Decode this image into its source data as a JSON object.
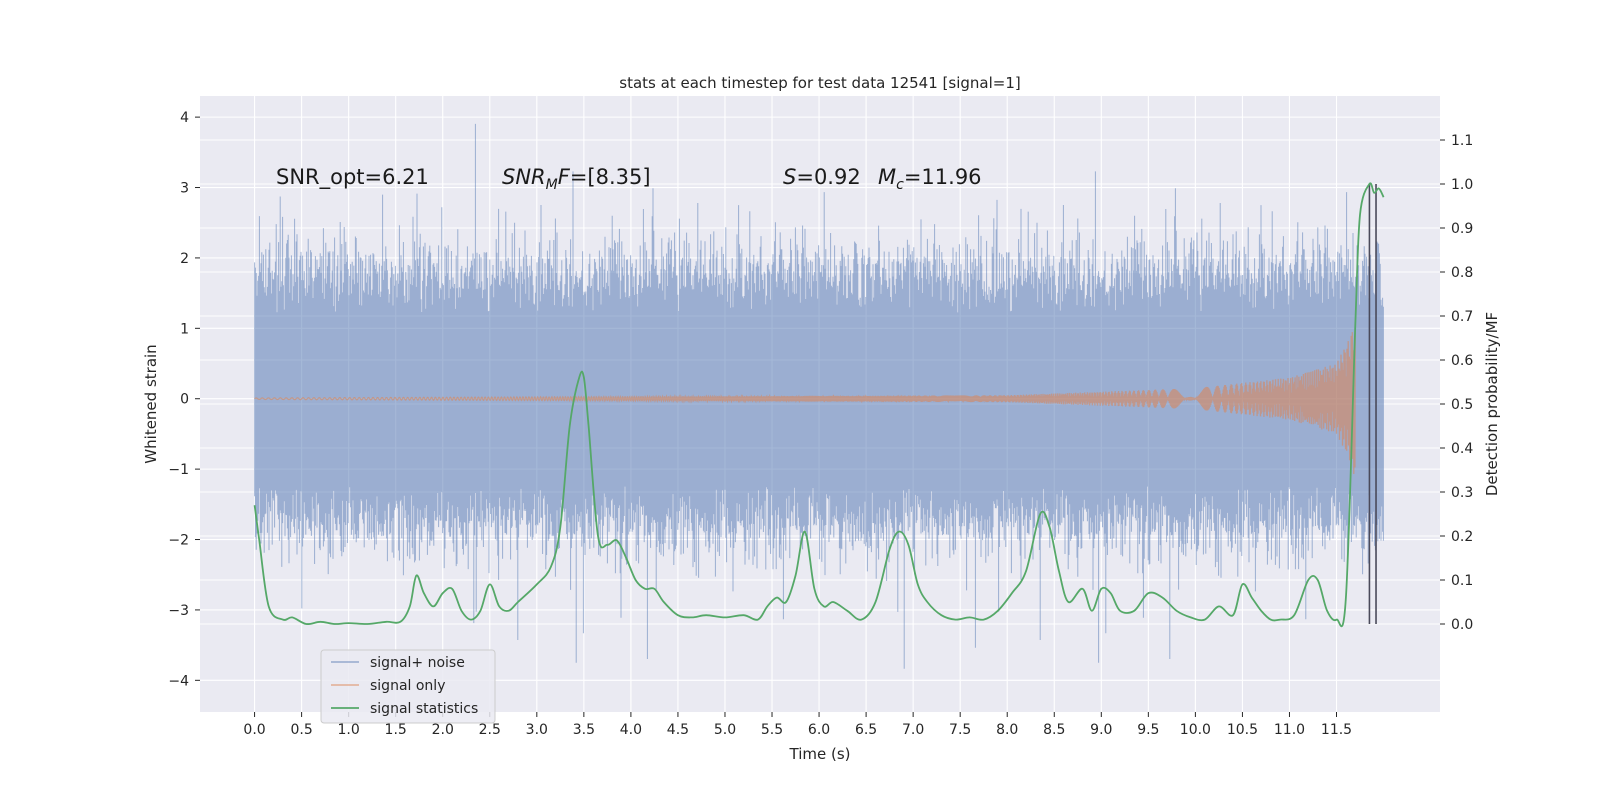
{
  "chart_data": {
    "type": "line",
    "title": "stats at each timestep for test data 12541 [signal=1]",
    "xlabel": "Time (s)",
    "ylabel_left": "Whitened strain",
    "ylabel_right": "Detection probability/MF",
    "xlim": [
      -0.58,
      12.6
    ],
    "ylim_left": [
      -4.45,
      4.3
    ],
    "ylim_right": [
      -0.2,
      1.2
    ],
    "x_ticks": [
      0.0,
      0.5,
      1.0,
      1.5,
      2.0,
      2.5,
      3.0,
      3.5,
      4.0,
      4.5,
      5.0,
      5.5,
      6.0,
      6.5,
      7.0,
      7.5,
      8.0,
      8.5,
      9.0,
      9.5,
      10.0,
      10.5,
      11.0,
      11.5
    ],
    "x_tick_labels": [
      "0.0",
      "0.5",
      "1.0",
      "1.5",
      "2.0",
      "2.5",
      "3.0",
      "3.5",
      "4.0",
      "4.5",
      "5.0",
      "5.5",
      "6.0",
      "6.5",
      "7.0",
      "7.5",
      "8.0",
      "8.5",
      "9.0",
      "9.5",
      "10.0",
      "10.5",
      "11.0",
      "11.5"
    ],
    "y_left_ticks": [
      4,
      3,
      2,
      1,
      0,
      -1,
      -2,
      -3,
      -4
    ],
    "y_left_tick_labels": [
      "4",
      "3",
      "2",
      "1",
      "0",
      "−1",
      "−2",
      "−3",
      "−4"
    ],
    "y_right_ticks": [
      1.1,
      1.0,
      0.9,
      0.8,
      0.7,
      0.6,
      0.5,
      0.4,
      0.3,
      0.2,
      0.1,
      0.0
    ],
    "y_right_tick_labels": [
      "1.1",
      "1.0",
      "0.9",
      "0.8",
      "0.7",
      "0.6",
      "0.5",
      "0.4",
      "0.3",
      "0.2",
      "0.1",
      "0.0"
    ],
    "grid": true,
    "legend_position": "lower-left",
    "annotations": {
      "snr_opt": "SNR_opt=6.21",
      "snr_mf_sym": "SNR",
      "snr_mf_sub": "M",
      "snr_mf_tail": "F=[8.35]",
      "s_sym": "S",
      "s_val": "=0.92",
      "mc_sym": "M",
      "mc_sub": "c",
      "mc_val": "=11.96"
    },
    "series": [
      {
        "name": "signal+ noise",
        "color": "#4c72b0",
        "axis": "left",
        "kind": "noise",
        "x_range": [
          0.0,
          12.0
        ],
        "envelope_typical": [
          -2.0,
          2.0
        ],
        "peak_max": 3.92,
        "peak_min": -4.1
      },
      {
        "name": "signal only",
        "color": "#dd8452",
        "axis": "left",
        "kind": "chirp",
        "x_range": [
          0.0,
          11.7
        ],
        "amplitude_points": [
          [
            0.0,
            0.01
          ],
          [
            8.0,
            0.05
          ],
          [
            10.0,
            0.15
          ],
          [
            11.0,
            0.3
          ],
          [
            11.5,
            0.5
          ],
          [
            11.65,
            0.9
          ],
          [
            11.7,
            1.15
          ]
        ]
      },
      {
        "name": "signal statistics",
        "color": "#55a868",
        "axis": "right",
        "kind": "line",
        "x": [
          0.0,
          0.05,
          0.15,
          0.3,
          0.4,
          0.55,
          0.7,
          0.85,
          1.0,
          1.2,
          1.4,
          1.55,
          1.65,
          1.72,
          1.8,
          1.9,
          2.0,
          2.1,
          2.2,
          2.3,
          2.4,
          2.5,
          2.6,
          2.7,
          2.8,
          3.0,
          3.15,
          3.25,
          3.35,
          3.45,
          3.5,
          3.55,
          3.65,
          3.75,
          3.85,
          3.95,
          4.05,
          4.15,
          4.25,
          4.35,
          4.5,
          4.65,
          4.8,
          5.0,
          5.2,
          5.35,
          5.45,
          5.55,
          5.65,
          5.75,
          5.85,
          5.95,
          6.05,
          6.15,
          6.3,
          6.45,
          6.6,
          6.75,
          6.85,
          6.95,
          7.05,
          7.15,
          7.3,
          7.45,
          7.6,
          7.75,
          7.9,
          8.05,
          8.2,
          8.35,
          8.45,
          8.55,
          8.65,
          8.8,
          8.9,
          9.0,
          9.1,
          9.2,
          9.35,
          9.5,
          9.65,
          9.8,
          9.95,
          10.1,
          10.25,
          10.4,
          10.5,
          10.6,
          10.7,
          10.8,
          10.9,
          11.05,
          11.2,
          11.3,
          11.4,
          11.5,
          11.6,
          11.7,
          11.75,
          11.85,
          11.9,
          11.95,
          12.0
        ],
        "y": [
          0.27,
          0.19,
          0.04,
          0.01,
          0.015,
          0.0,
          0.005,
          0.0,
          0.002,
          0.0,
          0.005,
          0.005,
          0.04,
          0.11,
          0.07,
          0.04,
          0.07,
          0.08,
          0.03,
          0.01,
          0.03,
          0.09,
          0.04,
          0.03,
          0.05,
          0.09,
          0.13,
          0.22,
          0.45,
          0.56,
          0.56,
          0.45,
          0.2,
          0.18,
          0.19,
          0.15,
          0.1,
          0.08,
          0.08,
          0.05,
          0.02,
          0.015,
          0.02,
          0.015,
          0.02,
          0.01,
          0.04,
          0.06,
          0.05,
          0.11,
          0.21,
          0.08,
          0.04,
          0.05,
          0.03,
          0.01,
          0.05,
          0.17,
          0.21,
          0.18,
          0.09,
          0.05,
          0.02,
          0.01,
          0.015,
          0.01,
          0.03,
          0.07,
          0.12,
          0.25,
          0.22,
          0.12,
          0.05,
          0.08,
          0.03,
          0.08,
          0.07,
          0.03,
          0.03,
          0.07,
          0.06,
          0.03,
          0.015,
          0.01,
          0.04,
          0.02,
          0.09,
          0.06,
          0.03,
          0.01,
          0.01,
          0.02,
          0.1,
          0.1,
          0.03,
          0.01,
          0.06,
          0.68,
          0.93,
          1.0,
          0.98,
          0.99,
          0.97
        ]
      }
    ],
    "vertical_markers": [
      {
        "x": 11.85,
        "range_right": [
          0.0,
          1.0
        ],
        "color": "#4a4a5a"
      },
      {
        "x": 11.92,
        "range_right": [
          0.0,
          1.0
        ],
        "color": "#4a4a5a"
      }
    ]
  }
}
